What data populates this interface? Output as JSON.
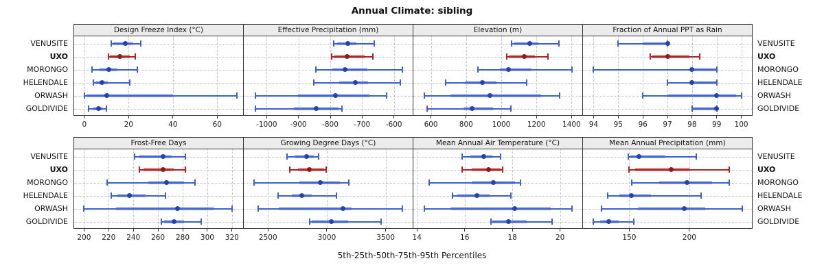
{
  "title": "Annual Climate: sibling",
  "footer": "5th-25th-50th-75th-95th Percentiles",
  "highlight_site": "UXO",
  "colors": {
    "normal_line": "#3D60D1",
    "normal_band": "rgba(61,96,209,0.45)",
    "normal_dot": "#2443B0",
    "highlight_line": "#B22222",
    "highlight_band": "rgba(178,34,34,0.5)",
    "highlight_dot": "#921A1A",
    "strip_bg": "#ECECEC",
    "grid": "#BDBDBD",
    "border": "#333333"
  },
  "chart_data": {
    "type": "percentile-interval",
    "layout": "2 rows x 4 columns trellis",
    "percentile_labels": [
      "5th",
      "25th",
      "50th",
      "75th",
      "95th"
    ],
    "rows": [
      "VENUSITE",
      "UXO",
      "MORONGO",
      "HELENDALE",
      "ORWASH",
      "GOLDIVIDE"
    ],
    "panels": [
      {
        "title": "Design Freeze Index (°C)",
        "ticks": [
          0,
          20,
          40,
          60
        ],
        "xlim": [
          -4.6,
          71.7
        ],
        "data": [
          {
            "site": "VENUSITE",
            "values": [
              12,
              13,
              18.5,
              22,
              25.5
            ]
          },
          {
            "site": "UXO",
            "values": [
              11,
              11.5,
              16,
              20.5,
              23
            ]
          },
          {
            "site": "MORONGO",
            "values": [
              3.5,
              7,
              11,
              15,
              24
            ]
          },
          {
            "site": "HELENDALE",
            "values": [
              4,
              5,
              8,
              10.5,
              20.5
            ]
          },
          {
            "site": "ORWASH",
            "values": [
              0,
              1,
              10,
              40,
              69
            ]
          },
          {
            "site": "GOLDIVIDE",
            "values": [
              2,
              4,
              6.5,
              8,
              10
            ]
          }
        ]
      },
      {
        "title": "Effective Precipitation (mm)",
        "ticks": [
          -1000,
          -900,
          -800,
          -700,
          -600
        ],
        "xlim": [
          -1072,
          -541
        ],
        "data": [
          {
            "site": "VENUSITE",
            "values": [
              -790,
              -778,
              -745,
              -718,
              -661
            ]
          },
          {
            "site": "UXO",
            "values": [
              -795,
              -787,
              -748,
              -693,
              -666
            ]
          },
          {
            "site": "MORONGO",
            "values": [
              -846,
              -794,
              -754,
              -684,
              -573
            ]
          },
          {
            "site": "HELENDALE",
            "values": [
              -852,
              -773,
              -721,
              -682,
              -579
            ]
          },
          {
            "site": "ORWASH",
            "values": [
              -1036,
              -902,
              -784,
              -677,
              -623
            ]
          },
          {
            "site": "GOLDIVIDE",
            "values": [
              -1036,
              -915,
              -845,
              -775,
              -763
            ]
          }
        ]
      },
      {
        "title": "Elevation (m)",
        "ticks": [
          600,
          800,
          1000,
          1200,
          1400
        ],
        "xlim": [
          500,
          1461
        ],
        "data": [
          {
            "site": "VENUSITE",
            "values": [
              1057,
              1073,
              1162,
              1212,
              1329
            ]
          },
          {
            "site": "UXO",
            "values": [
              1030,
              1042,
              1132,
              1193,
              1264
            ]
          },
          {
            "site": "MORONGO",
            "values": [
              868,
              993,
              1042,
              1173,
              1404
            ]
          },
          {
            "site": "HELENDALE",
            "values": [
              684,
              793,
              893,
              974,
              1144
            ]
          },
          {
            "site": "ORWASH",
            "values": [
              561,
              710,
              935,
              1225,
              1334
            ]
          },
          {
            "site": "GOLDIVIDE",
            "values": [
              578,
              787,
              835,
              954,
              1054
            ]
          }
        ]
      },
      {
        "title": "Fraction of Annual PPT as Rain",
        "ticks": [
          94,
          95,
          96,
          97,
          98,
          99,
          100
        ],
        "xlim": [
          93.57,
          100.43
        ],
        "data": [
          {
            "site": "VENUSITE",
            "values": [
              95,
              96,
              97,
              97,
              97
            ]
          },
          {
            "site": "UXO",
            "values": [
              96.3,
              96.4,
              97,
              97.9,
              98.3
            ]
          },
          {
            "site": "MORONGO",
            "values": [
              94,
              98,
              98,
              99,
              99
            ]
          },
          {
            "site": "HELENDALE",
            "values": [
              97,
              98,
              98,
              99,
              99
            ]
          },
          {
            "site": "ORWASH",
            "values": [
              96,
              97,
              99,
              99.8,
              100
            ]
          },
          {
            "site": "GOLDIVIDE",
            "values": [
              98,
              98,
              99,
              99,
              99
            ]
          }
        ]
      },
      {
        "title": "Frost-Free Days",
        "ticks": [
          200,
          220,
          240,
          260,
          280,
          300,
          320
        ],
        "xlim": [
          192,
          329
        ],
        "data": [
          {
            "site": "VENUSITE",
            "values": [
              241,
              245,
              264,
              271,
              282
            ]
          },
          {
            "site": "UXO",
            "values": [
              245,
              248,
              264,
              273,
              282
            ]
          },
          {
            "site": "MORONGO",
            "values": [
              219,
              252,
              267,
              281,
              290
            ]
          },
          {
            "site": "HELENDALE",
            "values": [
              222,
              227,
              237,
              250,
              266
            ]
          },
          {
            "site": "ORWASH",
            "values": [
              200,
              226,
              276,
              305,
              320
            ]
          },
          {
            "site": "GOLDIVIDE",
            "values": [
              263,
              265,
              273,
              281,
              295
            ]
          }
        ]
      },
      {
        "title": "Growing Degree Days (°C)",
        "ticks": [
          2500,
          3000,
          3500
        ],
        "xlim": [
          2294,
          3730
        ],
        "data": [
          {
            "site": "VENUSITE",
            "values": [
              2660,
              2725,
              2828,
              2890,
              2930
            ]
          },
          {
            "site": "UXO",
            "values": [
              2685,
              2755,
              2852,
              2975,
              2995
            ]
          },
          {
            "site": "MORONGO",
            "values": [
              2380,
              2765,
              2945,
              3113,
              3185
            ]
          },
          {
            "site": "HELENDALE",
            "values": [
              2585,
              2700,
              2790,
              2870,
              3080
            ]
          },
          {
            "site": "ORWASH",
            "values": [
              2417,
              2590,
              3138,
              3210,
              3645
            ]
          },
          {
            "site": "GOLDIVIDE",
            "values": [
              2852,
              2870,
              3036,
              3180,
              3460
            ]
          }
        ]
      },
      {
        "title": "Mean Annual Air Temperature (°C)",
        "ticks": [
          14,
          16,
          18,
          20
        ],
        "xlim": [
          13.85,
          20.93
        ],
        "data": [
          {
            "site": "VENUSITE",
            "values": [
              15.9,
              16.25,
              16.8,
              17.15,
              17.5
            ]
          },
          {
            "site": "UXO",
            "values": [
              15.9,
              16.3,
              17.0,
              17.5,
              17.6
            ]
          },
          {
            "site": "MORONGO",
            "values": [
              14.5,
              16.3,
              17.2,
              18.1,
              18.35
            ]
          },
          {
            "site": "HELENDALE",
            "values": [
              15.5,
              15.7,
              16.5,
              17.05,
              17.95
            ]
          },
          {
            "site": "ORWASH",
            "values": [
              14.3,
              15.4,
              18.1,
              19.6,
              20.5
            ]
          },
          {
            "site": "GOLDIVIDE",
            "values": [
              17.1,
              17.15,
              17.85,
              18.6,
              19.65
            ]
          }
        ]
      },
      {
        "title": "Mean Annual Precipitation (mm)",
        "ticks": [
          150,
          200
        ],
        "xlim": [
          111.5,
          252
        ],
        "data": [
          {
            "site": "VENUSITE",
            "values": [
              149,
              151,
              158,
              180,
              206
            ]
          },
          {
            "site": "UXO",
            "values": [
              150,
              155,
              185,
              200,
              233
            ]
          },
          {
            "site": "MORONGO",
            "values": [
              152,
              175,
              198,
              219,
              233
            ]
          },
          {
            "site": "HELENDALE",
            "values": [
              132,
              142,
              152,
              168,
              210
            ]
          },
          {
            "site": "ORWASH",
            "values": [
              127,
              157,
              196,
              213,
              244
            ]
          },
          {
            "site": "GOLDIVIDE",
            "values": [
              120,
              126,
              133,
              141,
              154
            ]
          }
        ]
      }
    ]
  }
}
